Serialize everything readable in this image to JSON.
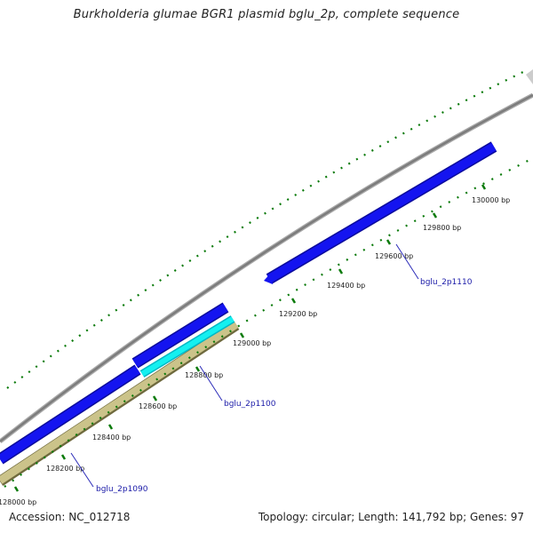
{
  "title": "Burkholderia glumae BGR1 plasmid bglu_2p, complete sequence",
  "footer": {
    "accession_label": "Accession:",
    "accession": "NC_012718",
    "topology": "Topology: circular",
    "length": "Length: 141,792 bp",
    "genes": "Genes: 97"
  },
  "ticks": [
    "128000 bp",
    "128200 bp",
    "128400 bp",
    "128600 bp",
    "128800 bp",
    "129000 bp",
    "129200 bp",
    "129400 bp",
    "129600 bp",
    "129800 bp",
    "130000 bp"
  ],
  "genes": [
    "bglu_2p1090",
    "bglu_2p1100",
    "bglu_2p1110"
  ],
  "colors": {
    "backbone": "#888888",
    "cds_forward": "#1010e6",
    "cds_reverse": "#00e5e5",
    "gene_reverse": "#c8c087",
    "tick": "#0a7a0a",
    "gene_label": "#1a1aa8"
  }
}
